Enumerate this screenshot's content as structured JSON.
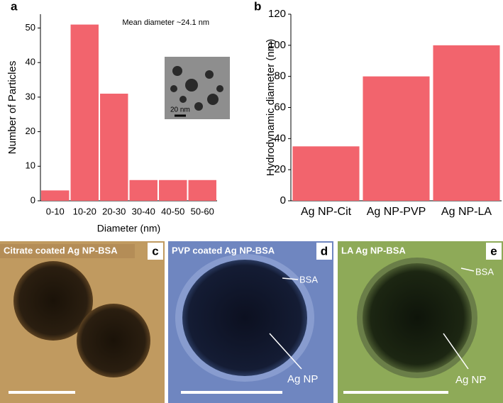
{
  "chart_data": [
    {
      "type": "bar",
      "panel_label": "a",
      "annotation": "Mean diameter ~24.1 nm",
      "inset_label": "20 nm",
      "x_label": "Diameter (nm)",
      "y_label": "Number of Particles",
      "categories": [
        "0-10",
        "10-20",
        "20-30",
        "30-40",
        "40-50",
        "50-60"
      ],
      "values": [
        3,
        51,
        31,
        6,
        6,
        6
      ],
      "color": "#f2646d",
      "ylim": [
        0,
        54
      ],
      "yticks": [
        0,
        10,
        20,
        30,
        40,
        50
      ]
    },
    {
      "type": "bar",
      "panel_label": "b",
      "y_label": "Hydrodynamic diameter (nm)",
      "categories": [
        "Ag NP-Cit",
        "Ag NP-PVP",
        "Ag NP-LA"
      ],
      "values": [
        35,
        80,
        100
      ],
      "color": "#f2646d",
      "ylim": [
        0,
        120
      ],
      "yticks": [
        0,
        20,
        40,
        60,
        80,
        100,
        120
      ]
    }
  ],
  "images": [
    {
      "label": "c",
      "caption": "Citrate coated Ag NP-BSA"
    },
    {
      "label": "d",
      "caption": "PVP coated Ag NP-BSA",
      "annotations": [
        "BSA",
        "Ag NP"
      ]
    },
    {
      "label": "e",
      "caption": "LA Ag NP-BSA",
      "annotations": [
        "BSA",
        "Ag NP"
      ]
    }
  ]
}
